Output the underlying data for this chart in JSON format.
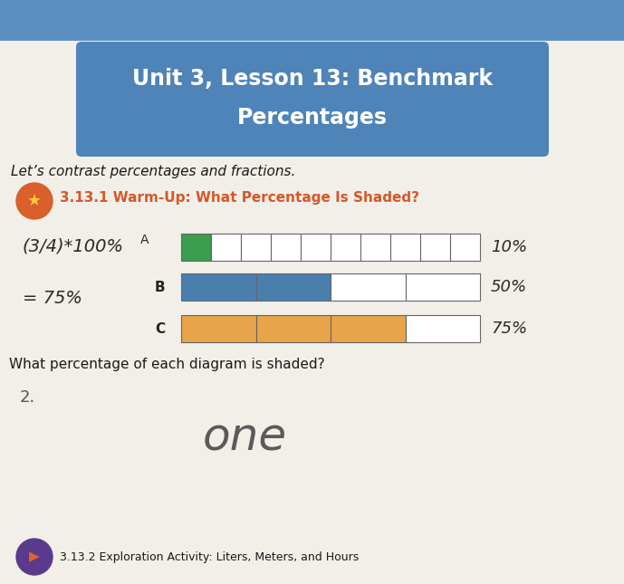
{
  "title_line1": "Unit 3, Lesson 13: Benchmark",
  "title_line2": "Percentages",
  "title_bg_color": "#4e84b8",
  "title_text_color": "#ffffff",
  "subtitle": "Let’s contrast percentages and fractions.",
  "section_title": "3.13.1 Warm-Up: What Percentage Is Shaded?",
  "section_title_color": "#d4582a",
  "question": "What percentage of each diagram is shaded?",
  "diagram_A_label": "A",
  "diagram_B_label": "B",
  "diagram_C_label": "C",
  "diagram_A_total_cells": 10,
  "diagram_A_shaded": 1,
  "diagram_A_shaded_color": "#3a9e4e",
  "diagram_A_unshaded_color": "#ffffff",
  "diagram_A_border_color": "#666666",
  "diagram_A_answer": "10%",
  "diagram_B_total_cells": 4,
  "diagram_B_shaded": 2,
  "diagram_B_shaded_color": "#4a7fad",
  "diagram_B_unshaded_color": "#ffffff",
  "diagram_B_border_color": "#666666",
  "diagram_B_answer": "50%",
  "diagram_C_total_cells": 4,
  "diagram_C_shaded": 3,
  "diagram_C_shaded_color": "#e8a44a",
  "diagram_C_unshaded_color": "#ffffff",
  "diagram_C_border_color": "#666666",
  "diagram_C_answer": "75%",
  "bg_outer": "#c8c8c8",
  "bg_paper": "#f2efe9",
  "bg_top_strip": "#5a8fbf",
  "handwriting_color": "#2a2a2a",
  "answer_color": "#2a2a2a",
  "word_written": "one",
  "icon_color": "#d95f2b",
  "bottom_icon_color": "#5a3a8a",
  "bottom_text": "3.13.2 Exploration Activity: Liters, Meters, and Hours"
}
